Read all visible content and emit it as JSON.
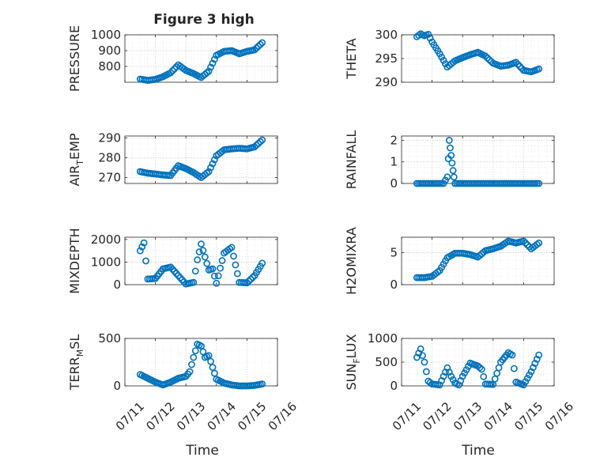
{
  "figure": {
    "title": "Figure 3 high",
    "xlabel": "Time",
    "marker_color": "#0072bd",
    "grid": "dotted"
  },
  "chart_data": [
    {
      "type": "scatter",
      "ylabel": "PRESSURE",
      "xlim": [
        "07/11",
        "07/16"
      ],
      "ylim": [
        700,
        1000
      ],
      "yticks": [
        800,
        900,
        1000
      ],
      "x": [
        "07/11 12:00",
        "07/11 18:00",
        "07/12 00:00",
        "07/12 06:00",
        "07/12 12:00",
        "07/12 18:00",
        "07/13 00:00",
        "07/13 06:00",
        "07/13 12:00",
        "07/13 18:00",
        "07/14 00:00",
        "07/14 06:00",
        "07/14 12:00",
        "07/14 18:00",
        "07/15 00:00",
        "07/15 06:00",
        "07/15 12:00"
      ],
      "y": [
        720,
        712,
        718,
        735,
        760,
        810,
        775,
        755,
        730,
        770,
        870,
        895,
        900,
        880,
        895,
        905,
        950
      ]
    },
    {
      "type": "scatter",
      "ylabel": "THETA",
      "xlim": [
        "07/11",
        "07/16"
      ],
      "ylim": [
        290,
        300
      ],
      "yticks": [
        290,
        295,
        300
      ],
      "x": [
        "07/11 12:00",
        "07/11 15:00",
        "07/11 18:00",
        "07/11 21:00",
        "07/12 00:00",
        "07/12 06:00",
        "07/12 12:00",
        "07/12 18:00",
        "07/13 00:00",
        "07/13 06:00",
        "07/13 12:00",
        "07/13 18:00",
        "07/14 00:00",
        "07/14 06:00",
        "07/14 12:00",
        "07/14 18:00",
        "07/15 00:00",
        "07/15 06:00",
        "07/15 12:00"
      ],
      "y": [
        299.6,
        300.2,
        299.8,
        300.1,
        298.5,
        296,
        293.2,
        294.5,
        295.2,
        295.8,
        296.3,
        295.5,
        294,
        293.4,
        293.6,
        294.2,
        292.5,
        292.2,
        292.8
      ]
    },
    {
      "type": "scatter",
      "ylabel": "AIR_TEMP",
      "xlim": [
        "07/11",
        "07/16"
      ],
      "ylim": [
        267,
        291
      ],
      "yticks": [
        270,
        280,
        290
      ],
      "x": [
        "07/11 12:00",
        "07/11 18:00",
        "07/12 00:00",
        "07/12 06:00",
        "07/12 12:00",
        "07/12 18:00",
        "07/13 00:00",
        "07/13 06:00",
        "07/13 12:00",
        "07/13 18:00",
        "07/14 00:00",
        "07/14 06:00",
        "07/14 12:00",
        "07/14 18:00",
        "07/15 00:00",
        "07/15 06:00",
        "07/15 12:00"
      ],
      "y": [
        273,
        272.2,
        271.8,
        271.3,
        271,
        276,
        274.5,
        272.5,
        270,
        273,
        281,
        284,
        284.5,
        284.8,
        284.5,
        285.5,
        289
      ]
    },
    {
      "type": "scatter",
      "ylabel": "RAINFALL",
      "xlim": [
        "07/11",
        "07/16"
      ],
      "ylim": [
        0,
        2.2
      ],
      "yticks": [
        0,
        1,
        2
      ],
      "x": [
        "07/11 12:00",
        "07/11 18:00",
        "07/12 00:00",
        "07/12 06:00",
        "07/12 09:00",
        "07/12 12:00",
        "07/12 13:30",
        "07/12 15:00",
        "07/12 16:30",
        "07/12 18:00",
        "07/12 21:00",
        "07/13 00:00",
        "07/13 12:00",
        "07/14 00:00",
        "07/14 12:00",
        "07/15 00:00",
        "07/15 12:00"
      ],
      "y": [
        0,
        0,
        0,
        0,
        0,
        0.3,
        2.0,
        1.3,
        0.6,
        0,
        0,
        0,
        0,
        0,
        0,
        0,
        0
      ]
    },
    {
      "type": "scatter",
      "ylabel": "MIXDEPTH",
      "xlim": [
        "07/11",
        "07/16"
      ],
      "ylim": [
        0,
        2100
      ],
      "yticks": [
        0,
        1000,
        2000
      ],
      "x": [
        "07/11 12:00",
        "07/11 15:00",
        "07/11 18:00",
        "07/12 00:00",
        "07/12 06:00",
        "07/12 12:00",
        "07/12 18:00",
        "07/13 00:00",
        "07/13 06:00",
        "07/13 09:00",
        "07/13 12:00",
        "07/13 18:00",
        "07/13 21:00",
        "07/14 00:00",
        "07/14 06:00",
        "07/14 12:00",
        "07/14 18:00",
        "07/15 00:00",
        "07/15 06:00",
        "07/15 12:00"
      ],
      "y": [
        1500,
        1850,
        250,
        270,
        700,
        780,
        400,
        30,
        100,
        1100,
        1800,
        650,
        700,
        60,
        1400,
        1650,
        100,
        80,
        400,
        950
      ]
    },
    {
      "type": "scatter",
      "ylabel": "H2OMIXRA",
      "xlim": [
        "07/11",
        "07/16"
      ],
      "ylim": [
        0,
        7.4
      ],
      "yticks": [
        0,
        5
      ],
      "x": [
        "07/11 12:00",
        "07/11 18:00",
        "07/12 00:00",
        "07/12 06:00",
        "07/12 12:00",
        "07/12 18:00",
        "07/13 00:00",
        "07/13 06:00",
        "07/13 12:00",
        "07/13 18:00",
        "07/14 00:00",
        "07/14 06:00",
        "07/14 12:00",
        "07/14 18:00",
        "07/15 00:00",
        "07/15 06:00",
        "07/15 12:00"
      ],
      "y": [
        1.1,
        1.1,
        1.3,
        2.2,
        4.2,
        4.9,
        4.9,
        4.7,
        4.3,
        5.3,
        5.6,
        6.0,
        6.8,
        6.5,
        6.8,
        5.6,
        6.5
      ]
    },
    {
      "type": "scatter",
      "ylabel": "TERR_MSL",
      "xlim": [
        "07/11",
        "07/16"
      ],
      "ylim": [
        0,
        500
      ],
      "yticks": [
        0,
        500
      ],
      "x": [
        "07/11 12:00",
        "07/11 18:00",
        "07/12 00:00",
        "07/12 06:00",
        "07/12 12:00",
        "07/12 18:00",
        "07/13 00:00",
        "07/13 03:00",
        "07/13 06:00",
        "07/13 09:00",
        "07/13 12:00",
        "07/13 15:00",
        "07/13 18:00",
        "07/14 00:00",
        "07/14 06:00",
        "07/14 12:00",
        "07/14 18:00",
        "07/15 00:00",
        "07/15 06:00",
        "07/15 12:00"
      ],
      "y": [
        120,
        80,
        40,
        10,
        40,
        80,
        100,
        150,
        300,
        440,
        420,
        300,
        320,
        70,
        30,
        10,
        0,
        0,
        5,
        20
      ]
    },
    {
      "type": "scatter",
      "ylabel": "SUN_FLUX",
      "xlim": [
        "07/11",
        "07/16"
      ],
      "ylim": [
        0,
        1000
      ],
      "yticks": [
        0,
        500,
        1000
      ],
      "x": [
        "07/11 12:00",
        "07/11 15:00",
        "07/11 18:00",
        "07/11 21:00",
        "07/12 00:00",
        "07/12 06:00",
        "07/12 12:00",
        "07/12 15:00",
        "07/12 18:00",
        "07/12 21:00",
        "07/13 00:00",
        "07/13 06:00",
        "07/13 12:00",
        "07/13 15:00",
        "07/13 18:00",
        "07/14 00:00",
        "07/14 06:00",
        "07/14 12:00",
        "07/14 15:00",
        "07/14 18:00",
        "07/15 00:00",
        "07/15 06:00",
        "07/15 12:00"
      ],
      "y": [
        600,
        780,
        500,
        100,
        40,
        20,
        380,
        200,
        60,
        20,
        200,
        480,
        420,
        350,
        40,
        30,
        500,
        700,
        650,
        80,
        20,
        300,
        650
      ]
    }
  ],
  "x_tick_labels": [
    "07/11",
    "07/12",
    "07/13",
    "07/14",
    "07/15",
    "07/16"
  ]
}
